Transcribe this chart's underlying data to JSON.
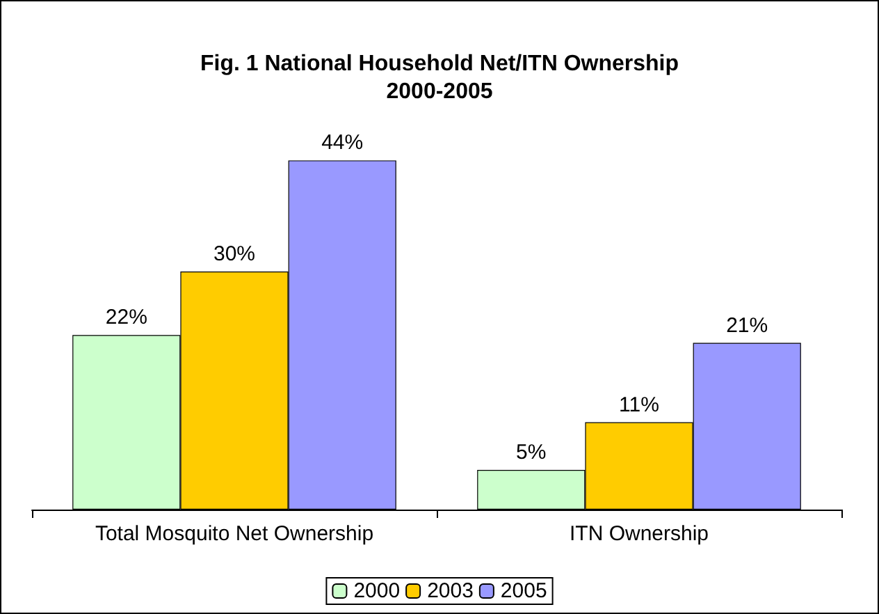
{
  "chart_data": {
    "type": "bar",
    "title": "Fig. 1 National Household Net/ITN Ownership\n2000-2005",
    "categories": [
      "Total Mosquito Net Ownership",
      "ITN Ownership"
    ],
    "series": [
      {
        "name": "2000",
        "color": "#ccffcc",
        "values": [
          22,
          5
        ],
        "value_labels": [
          "22%",
          "5%"
        ]
      },
      {
        "name": "2003",
        "color": "#ffcc00",
        "values": [
          30,
          11
        ],
        "value_labels": [
          "30%",
          "11%"
        ]
      },
      {
        "name": "2005",
        "color": "#9999ff",
        "values": [
          44,
          21
        ],
        "value_labels": [
          "44%",
          "21%"
        ]
      }
    ],
    "grid": false,
    "legend": "bottom"
  }
}
